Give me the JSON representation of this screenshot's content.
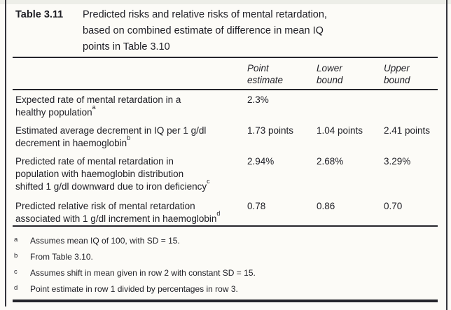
{
  "page": {
    "table_label": "Table 3.11",
    "title_lines": [
      "Predicted risks and relative risks of mental retardation,",
      "based on combined estimate of difference in mean IQ",
      "points in Table 3.10"
    ],
    "columns": [
      {
        "line1": "Point",
        "line2": "estimate"
      },
      {
        "line1": "Lower",
        "line2": "bound"
      },
      {
        "line1": "Upper",
        "line2": "bound"
      }
    ],
    "rows": [
      {
        "label_lines": [
          "Expected rate of mental retardation in a",
          "healthy population"
        ],
        "marker": "a",
        "values": [
          "2.3%",
          "",
          ""
        ]
      },
      {
        "label_lines": [
          "Estimated average decrement in IQ per 1 g/dl",
          "decrement in haemoglobin"
        ],
        "marker": "b",
        "values": [
          "1.73 points",
          "1.04 points",
          "2.41 points"
        ]
      },
      {
        "label_lines": [
          "Predicted rate of mental retardation in",
          "population with haemoglobin distribution",
          "shifted 1 g/dl downward due to iron deficiency"
        ],
        "marker": "c",
        "values": [
          "2.94%",
          "2.68%",
          "3.29%"
        ]
      },
      {
        "label_lines": [
          "Predicted relative risk of mental retardation",
          "associated with 1 g/dl increment in haemoglobin"
        ],
        "marker": "d",
        "values": [
          "0.78",
          "0.86",
          "0.70"
        ]
      }
    ],
    "footnotes": [
      {
        "marker": "a",
        "text": "Assumes mean IQ of 100, with SD = 15."
      },
      {
        "marker": "b",
        "text": "From Table 3.10."
      },
      {
        "marker": "c",
        "text": "Assumes shift in mean given in row 2 with constant SD = 15."
      },
      {
        "marker": "d",
        "text": "Point estimate in row 1 divided by percentages in row 3."
      }
    ],
    "colors": {
      "text": "#1e1e24",
      "rule": "#26262c",
      "background": "#fcfbf7"
    }
  }
}
